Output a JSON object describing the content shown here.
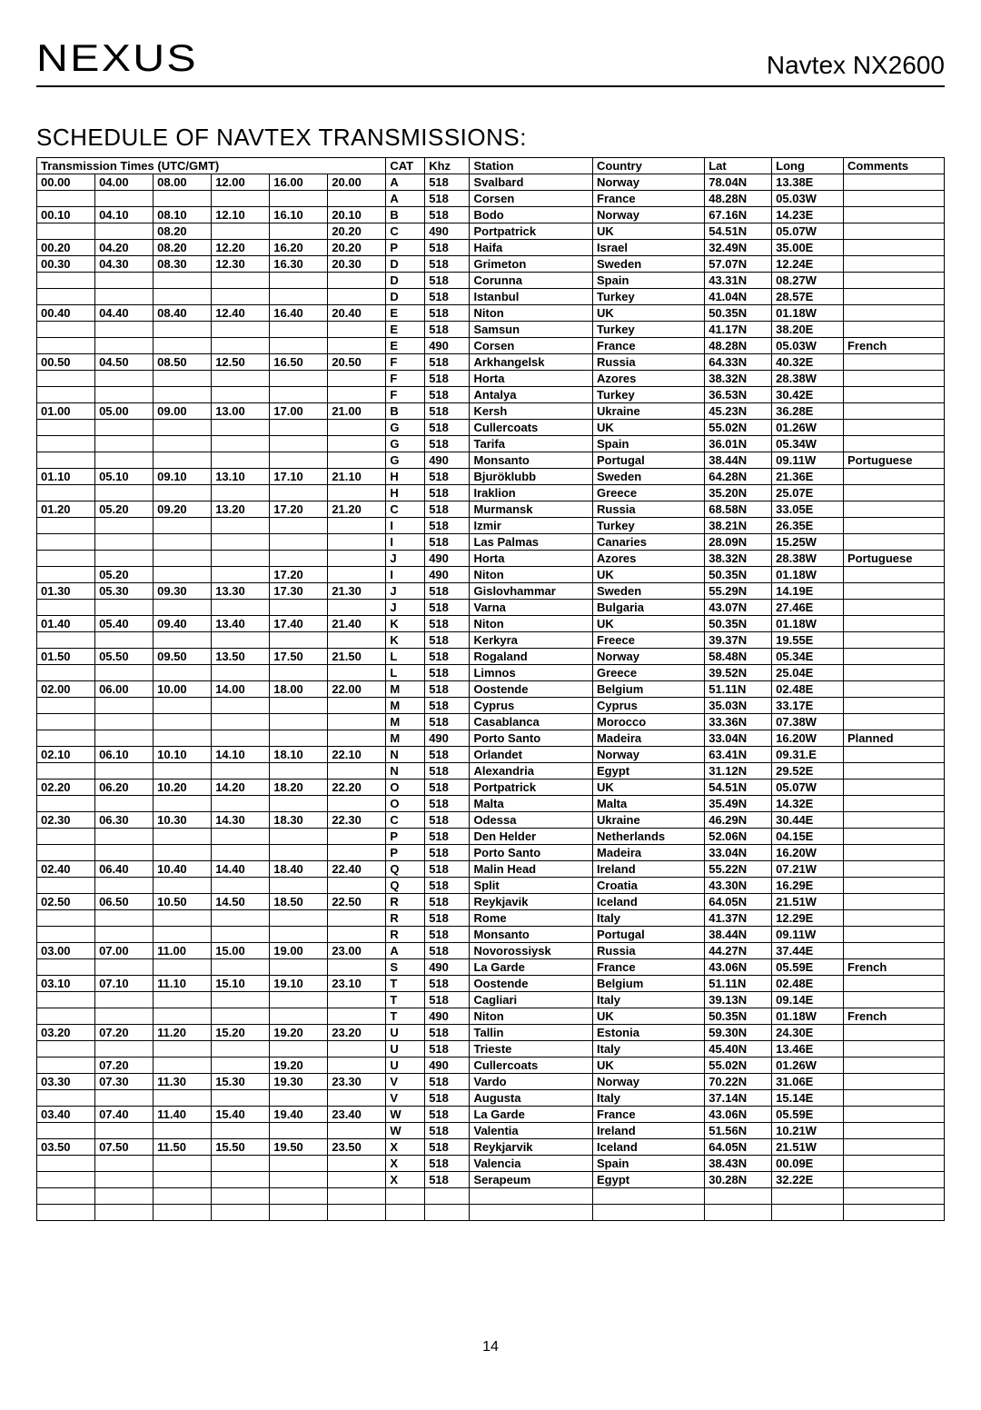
{
  "header": {
    "logo": "NEXUS",
    "product": "Navtex NX2600"
  },
  "title": "SCHEDULE OF NAVTEX TRANSMISSIONS:",
  "columns": {
    "times_header": "Transmission Times (UTC/GMT)",
    "cat": "CAT",
    "khz": "Khz",
    "station": "Station",
    "country": "Country",
    "lat": "Lat",
    "long": "Long",
    "comments": "Comments"
  },
  "rows": [
    {
      "t": [
        "00.00",
        "04.00",
        "08.00",
        "12.00",
        "16.00",
        "20.00"
      ],
      "cat": "A",
      "khz": "518",
      "station": "Svalbard",
      "country": "Norway",
      "lat": "78.04N",
      "long": "13.38E",
      "c": ""
    },
    {
      "t": [
        "",
        "",
        "",
        "",
        "",
        ""
      ],
      "cat": "A",
      "khz": "518",
      "station": "Corsen",
      "country": "France",
      "lat": "48.28N",
      "long": "05.03W",
      "c": ""
    },
    {
      "t": [
        "00.10",
        "04.10",
        "08.10",
        "12.10",
        "16.10",
        "20.10"
      ],
      "cat": "B",
      "khz": "518",
      "station": "Bodo",
      "country": "Norway",
      "lat": "67.16N",
      "long": "14.23E",
      "c": ""
    },
    {
      "t": [
        "",
        "",
        "08.20",
        "",
        "",
        "20.20"
      ],
      "cat": "C",
      "khz": "490",
      "station": "Portpatrick",
      "country": "UK",
      "lat": "54.51N",
      "long": "05.07W",
      "c": ""
    },
    {
      "t": [
        "00.20",
        "04.20",
        "08.20",
        "12.20",
        "16.20",
        "20.20"
      ],
      "cat": "P",
      "khz": "518",
      "station": "Haifa",
      "country": "Israel",
      "lat": "32.49N",
      "long": "35.00E",
      "c": ""
    },
    {
      "t": [
        "00.30",
        "04.30",
        "08.30",
        "12.30",
        "16.30",
        "20.30"
      ],
      "cat": "D",
      "khz": "518",
      "station": "Grimeton",
      "country": "Sweden",
      "lat": "57.07N",
      "long": "12.24E",
      "c": ""
    },
    {
      "t": [
        "",
        "",
        "",
        "",
        "",
        ""
      ],
      "cat": "D",
      "khz": "518",
      "station": "Corunna",
      "country": "Spain",
      "lat": "43.31N",
      "long": "08.27W",
      "c": ""
    },
    {
      "t": [
        "",
        "",
        "",
        "",
        "",
        ""
      ],
      "cat": "D",
      "khz": "518",
      "station": "Istanbul",
      "country": "Turkey",
      "lat": "41.04N",
      "long": "28.57E",
      "c": ""
    },
    {
      "t": [
        "00.40",
        "04.40",
        "08.40",
        "12.40",
        "16.40",
        "20.40"
      ],
      "cat": "E",
      "khz": "518",
      "station": "Niton",
      "country": "UK",
      "lat": "50.35N",
      "long": "01.18W",
      "c": ""
    },
    {
      "t": [
        "",
        "",
        "",
        "",
        "",
        ""
      ],
      "cat": "E",
      "khz": "518",
      "station": "Samsun",
      "country": "Turkey",
      "lat": "41.17N",
      "long": "38.20E",
      "c": ""
    },
    {
      "t": [
        "",
        "",
        "",
        "",
        "",
        ""
      ],
      "cat": "E",
      "khz": "490",
      "station": "Corsen",
      "country": "France",
      "lat": "48.28N",
      "long": "05.03W",
      "c": "French"
    },
    {
      "t": [
        "00.50",
        "04.50",
        "08.50",
        "12.50",
        "16.50",
        "20.50"
      ],
      "cat": "F",
      "khz": "518",
      "station": "Arkhangelsk",
      "country": "Russia",
      "lat": "64.33N",
      "long": "40.32E",
      "c": ""
    },
    {
      "t": [
        "",
        "",
        "",
        "",
        "",
        ""
      ],
      "cat": "F",
      "khz": "518",
      "station": "Horta",
      "country": "Azores",
      "lat": "38.32N",
      "long": "28.38W",
      "c": ""
    },
    {
      "t": [
        "",
        "",
        "",
        "",
        "",
        ""
      ],
      "cat": "F",
      "khz": "518",
      "station": "Antalya",
      "country": "Turkey",
      "lat": "36.53N",
      "long": "30.42E",
      "c": ""
    },
    {
      "t": [
        "01.00",
        "05.00",
        "09.00",
        "13.00",
        "17.00",
        "21.00"
      ],
      "cat": "B",
      "khz": "518",
      "station": "Kersh",
      "country": "Ukraine",
      "lat": "45.23N",
      "long": "36.28E",
      "c": ""
    },
    {
      "t": [
        "",
        "",
        "",
        "",
        "",
        ""
      ],
      "cat": "G",
      "khz": "518",
      "station": "Cullercoats",
      "country": "UK",
      "lat": "55.02N",
      "long": "01.26W",
      "c": ""
    },
    {
      "t": [
        "",
        "",
        "",
        "",
        "",
        ""
      ],
      "cat": "G",
      "khz": "518",
      "station": "Tarifa",
      "country": "Spain",
      "lat": "36.01N",
      "long": "05.34W",
      "c": ""
    },
    {
      "t": [
        "",
        "",
        "",
        "",
        "",
        ""
      ],
      "cat": "G",
      "khz": "490",
      "station": "Monsanto",
      "country": "Portugal",
      "lat": "38.44N",
      "long": "09.11W",
      "c": "Portuguese"
    },
    {
      "t": [
        "01.10",
        "05.10",
        "09.10",
        "13.10",
        "17.10",
        "21.10"
      ],
      "cat": "H",
      "khz": "518",
      "station": "Bjuröklubb",
      "country": "Sweden",
      "lat": "64.28N",
      "long": "21.36E",
      "c": ""
    },
    {
      "t": [
        "",
        "",
        "",
        "",
        "",
        ""
      ],
      "cat": "H",
      "khz": "518",
      "station": "Iraklion",
      "country": "Greece",
      "lat": "35.20N",
      "long": "25.07E",
      "c": ""
    },
    {
      "t": [
        "01.20",
        "05.20",
        "09.20",
        "13.20",
        "17.20",
        "21.20"
      ],
      "cat": "C",
      "khz": "518",
      "station": "Murmansk",
      "country": "Russia",
      "lat": "68.58N",
      "long": "33.05E",
      "c": ""
    },
    {
      "t": [
        "",
        "",
        "",
        "",
        "",
        ""
      ],
      "cat": "I",
      "khz": "518",
      "station": "Izmir",
      "country": "Turkey",
      "lat": "38.21N",
      "long": "26.35E",
      "c": ""
    },
    {
      "t": [
        "",
        "",
        "",
        "",
        "",
        ""
      ],
      "cat": "I",
      "khz": "518",
      "station": "Las Palmas",
      "country": "Canaries",
      "lat": "28.09N",
      "long": "15.25W",
      "c": ""
    },
    {
      "t": [
        "",
        "",
        "",
        "",
        "",
        ""
      ],
      "cat": "J",
      "khz": "490",
      "station": "Horta",
      "country": "Azores",
      "lat": "38.32N",
      "long": "28.38W",
      "c": "Portuguese"
    },
    {
      "t": [
        "",
        "05.20",
        "",
        "",
        "17.20",
        ""
      ],
      "cat": "I",
      "khz": "490",
      "station": "Niton",
      "country": "UK",
      "lat": "50.35N",
      "long": "01.18W",
      "c": ""
    },
    {
      "t": [
        "01.30",
        "05.30",
        "09.30",
        "13.30",
        "17.30",
        "21.30"
      ],
      "cat": "J",
      "khz": "518",
      "station": "Gislovhammar",
      "country": "Sweden",
      "lat": "55.29N",
      "long": "14.19E",
      "c": ""
    },
    {
      "t": [
        "",
        "",
        "",
        "",
        "",
        ""
      ],
      "cat": "J",
      "khz": "518",
      "station": "Varna",
      "country": "Bulgaria",
      "lat": "43.07N",
      "long": "27.46E",
      "c": ""
    },
    {
      "t": [
        "01.40",
        "05.40",
        "09.40",
        "13.40",
        "17.40",
        "21.40"
      ],
      "cat": "K",
      "khz": "518",
      "station": "Niton",
      "country": "UK",
      "lat": "50.35N",
      "long": "01.18W",
      "c": ""
    },
    {
      "t": [
        "",
        "",
        "",
        "",
        "",
        ""
      ],
      "cat": "K",
      "khz": "518",
      "station": "Kerkyra",
      "country": "Freece",
      "lat": "39.37N",
      "long": "19.55E",
      "c": ""
    },
    {
      "t": [
        "01.50",
        "05.50",
        "09.50",
        "13.50",
        "17.50",
        "21.50"
      ],
      "cat": "L",
      "khz": "518",
      "station": "Rogaland",
      "country": "Norway",
      "lat": "58.48N",
      "long": "05.34E",
      "c": ""
    },
    {
      "t": [
        "",
        "",
        "",
        "",
        "",
        ""
      ],
      "cat": "L",
      "khz": "518",
      "station": "Limnos",
      "country": "Greece",
      "lat": "39.52N",
      "long": "25.04E",
      "c": ""
    },
    {
      "t": [
        "02.00",
        "06.00",
        "10.00",
        "14.00",
        "18.00",
        "22.00"
      ],
      "cat": "M",
      "khz": "518",
      "station": "Oostende",
      "country": "Belgium",
      "lat": "51.11N",
      "long": "02.48E",
      "c": ""
    },
    {
      "t": [
        "",
        "",
        "",
        "",
        "",
        ""
      ],
      "cat": "M",
      "khz": "518",
      "station": "Cyprus",
      "country": "Cyprus",
      "lat": "35.03N",
      "long": "33.17E",
      "c": ""
    },
    {
      "t": [
        "",
        "",
        "",
        "",
        "",
        ""
      ],
      "cat": "M",
      "khz": "518",
      "station": "Casablanca",
      "country": "Morocco",
      "lat": "33.36N",
      "long": "07.38W",
      "c": ""
    },
    {
      "t": [
        "",
        "",
        "",
        "",
        "",
        ""
      ],
      "cat": "M",
      "khz": "490",
      "station": "Porto Santo",
      "country": "Madeira",
      "lat": "33.04N",
      "long": "16.20W",
      "c": "Planned"
    },
    {
      "t": [
        "02.10",
        "06.10",
        "10.10",
        "14.10",
        "18.10",
        "22.10"
      ],
      "cat": "N",
      "khz": "518",
      "station": "Orlandet",
      "country": "Norway",
      "lat": "63.41N",
      "long": "09.31.E",
      "c": ""
    },
    {
      "t": [
        "",
        "",
        "",
        "",
        "",
        ""
      ],
      "cat": "N",
      "khz": "518",
      "station": "Alexandria",
      "country": "Egypt",
      "lat": "31.12N",
      "long": "29.52E",
      "c": ""
    },
    {
      "t": [
        "02.20",
        "06.20",
        "10.20",
        "14.20",
        "18.20",
        "22.20"
      ],
      "cat": "O",
      "khz": "518",
      "station": "Portpatrick",
      "country": "UK",
      "lat": "54.51N",
      "long": "05.07W",
      "c": ""
    },
    {
      "t": [
        "",
        "",
        "",
        "",
        "",
        ""
      ],
      "cat": "O",
      "khz": "518",
      "station": "Malta",
      "country": "Malta",
      "lat": "35.49N",
      "long": "14.32E",
      "c": ""
    },
    {
      "t": [
        "02.30",
        "06.30",
        "10.30",
        "14.30",
        "18.30",
        "22.30"
      ],
      "cat": "C",
      "khz": "518",
      "station": "Odessa",
      "country": "Ukraine",
      "lat": "46.29N",
      "long": "30.44E",
      "c": ""
    },
    {
      "t": [
        "",
        "",
        "",
        "",
        "",
        ""
      ],
      "cat": "P",
      "khz": "518",
      "station": "Den Helder",
      "country": "Netherlands",
      "lat": "52.06N",
      "long": "04.15E",
      "c": ""
    },
    {
      "t": [
        "",
        "",
        "",
        "",
        "",
        ""
      ],
      "cat": "P",
      "khz": "518",
      "station": "Porto Santo",
      "country": "Madeira",
      "lat": "33.04N",
      "long": "16.20W",
      "c": ""
    },
    {
      "t": [
        "02.40",
        "06.40",
        "10.40",
        "14.40",
        "18.40",
        "22.40"
      ],
      "cat": "Q",
      "khz": "518",
      "station": "Malin Head",
      "country": "Ireland",
      "lat": "55.22N",
      "long": "07.21W",
      "c": ""
    },
    {
      "t": [
        "",
        "",
        "",
        "",
        "",
        ""
      ],
      "cat": "Q",
      "khz": "518",
      "station": "Split",
      "country": "Croatia",
      "lat": "43.30N",
      "long": "16.29E",
      "c": ""
    },
    {
      "t": [
        "02.50",
        "06.50",
        "10.50",
        "14.50",
        "18.50",
        "22.50"
      ],
      "cat": "R",
      "khz": "518",
      "station": "Reykjavik",
      "country": "Iceland",
      "lat": "64.05N",
      "long": "21.51W",
      "c": ""
    },
    {
      "t": [
        "",
        "",
        "",
        "",
        "",
        ""
      ],
      "cat": "R",
      "khz": "518",
      "station": "Rome",
      "country": "Italy",
      "lat": "41.37N",
      "long": "12.29E",
      "c": ""
    },
    {
      "t": [
        "",
        "",
        "",
        "",
        "",
        ""
      ],
      "cat": "R",
      "khz": "518",
      "station": "Monsanto",
      "country": "Portugal",
      "lat": "38.44N",
      "long": "09.11W",
      "c": ""
    },
    {
      "t": [
        "03.00",
        "07.00",
        "11.00",
        "15.00",
        "19.00",
        "23.00"
      ],
      "cat": "A",
      "khz": "518",
      "station": "Novorossiysk",
      "country": "Russia",
      "lat": "44.27N",
      "long": "37.44E",
      "c": ""
    },
    {
      "t": [
        "",
        "",
        "",
        "",
        "",
        ""
      ],
      "cat": "S",
      "khz": "490",
      "station": "La Garde",
      "country": "France",
      "lat": "43.06N",
      "long": "05.59E",
      "c": "French"
    },
    {
      "t": [
        "03.10",
        "07.10",
        "11.10",
        "15.10",
        "19.10",
        "23.10"
      ],
      "cat": "T",
      "khz": "518",
      "station": "Oostende",
      "country": "Belgium",
      "lat": "51.11N",
      "long": "02.48E",
      "c": ""
    },
    {
      "t": [
        "",
        "",
        "",
        "",
        "",
        ""
      ],
      "cat": "T",
      "khz": "518",
      "station": "Cagliari",
      "country": "Italy",
      "lat": "39.13N",
      "long": "09.14E",
      "c": ""
    },
    {
      "t": [
        "",
        "",
        "",
        "",
        "",
        ""
      ],
      "cat": "T",
      "khz": "490",
      "station": "Niton",
      "country": "UK",
      "lat": "50.35N",
      "long": "01.18W",
      "c": "French"
    },
    {
      "t": [
        "03.20",
        "07.20",
        "11.20",
        "15.20",
        "19.20",
        "23.20"
      ],
      "cat": "U",
      "khz": "518",
      "station": "Tallin",
      "country": "Estonia",
      "lat": "59.30N",
      "long": "24.30E",
      "c": ""
    },
    {
      "t": [
        "",
        "",
        "",
        "",
        "",
        ""
      ],
      "cat": "U",
      "khz": "518",
      "station": "Trieste",
      "country": "Italy",
      "lat": "45.40N",
      "long": "13.46E",
      "c": ""
    },
    {
      "t": [
        "",
        "07.20",
        "",
        "",
        "19.20",
        ""
      ],
      "cat": "U",
      "khz": "490",
      "station": "Cullercoats",
      "country": "UK",
      "lat": "55.02N",
      "long": "01.26W",
      "c": ""
    },
    {
      "t": [
        "03.30",
        "07.30",
        "11.30",
        "15.30",
        "19.30",
        "23.30"
      ],
      "cat": "V",
      "khz": "518",
      "station": "Vardo",
      "country": "Norway",
      "lat": "70.22N",
      "long": "31.06E",
      "c": ""
    },
    {
      "t": [
        "",
        "",
        "",
        "",
        "",
        ""
      ],
      "cat": "V",
      "khz": "518",
      "station": "Augusta",
      "country": "Italy",
      "lat": "37.14N",
      "long": "15.14E",
      "c": ""
    },
    {
      "t": [
        "03.40",
        "07.40",
        "11.40",
        "15.40",
        "19.40",
        "23.40"
      ],
      "cat": "W",
      "khz": "518",
      "station": "La Garde",
      "country": "France",
      "lat": "43.06N",
      "long": "05.59E",
      "c": ""
    },
    {
      "t": [
        "",
        "",
        "",
        "",
        "",
        ""
      ],
      "cat": "W",
      "khz": "518",
      "station": "Valentia",
      "country": "Ireland",
      "lat": "51.56N",
      "long": "10.21W",
      "c": ""
    },
    {
      "t": [
        "03.50",
        "07.50",
        "11.50",
        "15.50",
        "19.50",
        "23.50"
      ],
      "cat": "X",
      "khz": "518",
      "station": "Reykjarvik",
      "country": "Iceland",
      "lat": "64.05N",
      "long": "21.51W",
      "c": ""
    },
    {
      "t": [
        "",
        "",
        "",
        "",
        "",
        ""
      ],
      "cat": "X",
      "khz": "518",
      "station": "Valencia",
      "country": "Spain",
      "lat": "38.43N",
      "long": "00.09E",
      "c": ""
    },
    {
      "t": [
        "",
        "",
        "",
        "",
        "",
        ""
      ],
      "cat": "X",
      "khz": "518",
      "station": "Serapeum",
      "country": "Egypt",
      "lat": "30.28N",
      "long": "32.22E",
      "c": ""
    },
    {
      "t": [
        "",
        "",
        "",
        "",
        "",
        ""
      ],
      "cat": "",
      "khz": "",
      "station": "",
      "country": "",
      "lat": "",
      "long": "",
      "c": ""
    },
    {
      "t": [
        "",
        "",
        "",
        "",
        "",
        ""
      ],
      "cat": "",
      "khz": "",
      "station": "",
      "country": "",
      "lat": "",
      "long": "",
      "c": ""
    }
  ],
  "page_number": "14"
}
